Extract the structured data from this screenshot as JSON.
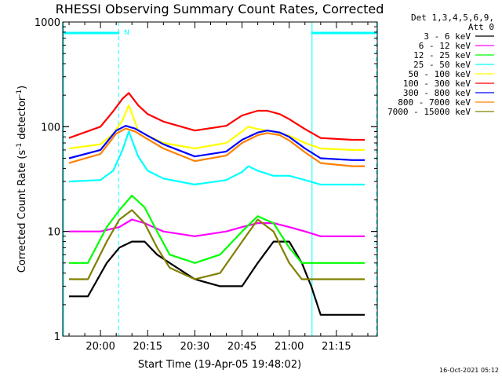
{
  "chart_data": {
    "type": "line",
    "title": "RHESSI Observing Summary Count Rates, Corrected",
    "xlabel": "Start Time (19-Apr-05 19:48:02)",
    "ylabel_main": "Corrected Count Rate (s",
    "ylabel_sup1": "-1",
    "ylabel_mid": " detector",
    "ylabel_sup2": "-1",
    "ylabel_end": ")",
    "yscale": "log",
    "ylim": [
      1,
      1000
    ],
    "xlim": [
      "19:48",
      "21:28"
    ],
    "y_ticks": [
      "1",
      "10",
      "100",
      "1000"
    ],
    "x_ticks": [
      "20:00",
      "20:15",
      "20:30",
      "20:45",
      "21:00",
      "21:15"
    ],
    "legend_title_1": "Det 1,3,4,5,6,9,",
    "legend_title_2": "Att 0",
    "legend_position": "right",
    "night_label": "N",
    "night_intervals": [
      [
        "19:48",
        "20:06"
      ],
      [
        "21:07",
        "21:28"
      ]
    ],
    "timestamp": "16-Oct-2021 05:12",
    "series": [
      {
        "name": "3 - 6 keV",
        "color": "#000000",
        "x": [
          "19:50",
          "19:56",
          "20:02",
          "20:06",
          "20:10",
          "20:14",
          "20:18",
          "20:22",
          "20:30",
          "20:38",
          "20:45",
          "20:50",
          "20:55",
          "21:00",
          "21:04",
          "21:07",
          "21:10",
          "21:15",
          "21:20",
          "21:24"
        ],
        "y": [
          2.4,
          2.4,
          5,
          7,
          8,
          8,
          6,
          5,
          3.5,
          3,
          3,
          5,
          8,
          8,
          5,
          3,
          1.6,
          1.6,
          1.6,
          1.6
        ]
      },
      {
        "name": "6 - 12 keV",
        "color": "#ff00ff",
        "x": [
          "19:50",
          "20:00",
          "20:06",
          "20:10",
          "20:14",
          "20:20",
          "20:30",
          "20:40",
          "20:45",
          "20:50",
          "20:55",
          "21:00",
          "21:05",
          "21:10",
          "21:20",
          "21:24"
        ],
        "y": [
          10,
          10,
          11,
          13,
          12,
          10,
          9,
          10,
          11,
          12,
          12,
          11,
          10,
          9,
          9,
          9
        ]
      },
      {
        "name": "12 - 25 keV",
        "color": "#00ff00",
        "x": [
          "19:50",
          "19:56",
          "20:02",
          "20:06",
          "20:10",
          "20:14",
          "20:18",
          "20:22",
          "20:30",
          "20:38",
          "20:45",
          "20:50",
          "20:55",
          "21:00",
          "21:04",
          "21:07",
          "21:15",
          "21:24"
        ],
        "y": [
          5,
          5,
          11,
          16,
          22,
          17,
          10,
          6,
          5,
          6,
          10,
          14,
          12,
          7,
          5,
          5,
          5,
          5
        ]
      },
      {
        "name": "25 - 50 keV",
        "color": "#00ffff",
        "x": [
          "19:50",
          "20:00",
          "20:04",
          "20:07",
          "20:09",
          "20:12",
          "20:15",
          "20:20",
          "20:30",
          "20:40",
          "20:45",
          "20:47",
          "20:50",
          "20:55",
          "21:00",
          "21:05",
          "21:10",
          "21:20",
          "21:24"
        ],
        "y": [
          30,
          31,
          38,
          60,
          90,
          52,
          38,
          32,
          28,
          31,
          37,
          42,
          38,
          34,
          34,
          31,
          28,
          28,
          28
        ]
      },
      {
        "name": "50 - 100 keV",
        "color": "#ffff00",
        "x": [
          "19:50",
          "20:00",
          "20:04",
          "20:07",
          "20:09",
          "20:12",
          "20:15",
          "20:20",
          "20:30",
          "20:40",
          "20:45",
          "20:47",
          "20:50",
          "20:55",
          "21:00",
          "21:05",
          "21:10",
          "21:20",
          "21:24"
        ],
        "y": [
          62,
          68,
          85,
          115,
          160,
          92,
          82,
          70,
          62,
          70,
          90,
          100,
          95,
          90,
          82,
          70,
          62,
          60,
          60
        ]
      },
      {
        "name": "100 - 300 keV",
        "color": "#ff0000",
        "x": [
          "19:50",
          "20:00",
          "20:04",
          "20:07",
          "20:09",
          "20:12",
          "20:15",
          "20:20",
          "20:30",
          "20:40",
          "20:45",
          "20:50",
          "20:53",
          "20:57",
          "21:00",
          "21:05",
          "21:10",
          "21:20",
          "21:24"
        ],
        "y": [
          78,
          100,
          140,
          185,
          210,
          160,
          132,
          112,
          92,
          102,
          128,
          142,
          142,
          132,
          118,
          95,
          78,
          75,
          75
        ]
      },
      {
        "name": "300 - 800 keV",
        "color": "#0000ff",
        "x": [
          "19:50",
          "20:00",
          "20:05",
          "20:08",
          "20:11",
          "20:15",
          "20:20",
          "20:30",
          "20:40",
          "20:45",
          "20:50",
          "20:53",
          "20:57",
          "21:00",
          "21:05",
          "21:10",
          "21:20",
          "21:24"
        ],
        "y": [
          50,
          60,
          92,
          102,
          96,
          82,
          68,
          52,
          58,
          75,
          88,
          92,
          88,
          80,
          62,
          50,
          48,
          48
        ]
      },
      {
        "name": "800 - 7000 keV",
        "color": "#ff8000",
        "x": [
          "19:50",
          "20:00",
          "20:05",
          "20:08",
          "20:11",
          "20:15",
          "20:20",
          "20:30",
          "20:40",
          "20:45",
          "20:50",
          "20:53",
          "20:57",
          "21:00",
          "21:05",
          "21:10",
          "21:20",
          "21:24"
        ],
        "y": [
          45,
          55,
          86,
          96,
          90,
          76,
          62,
          47,
          53,
          70,
          83,
          87,
          83,
          74,
          57,
          45,
          42,
          42
        ]
      },
      {
        "name": "7000 - 15000 keV",
        "color": "#808000",
        "x": [
          "19:50",
          "19:56",
          "20:02",
          "20:06",
          "20:10",
          "20:14",
          "20:18",
          "20:22",
          "20:30",
          "20:38",
          "20:45",
          "20:50",
          "20:55",
          "21:00",
          "21:04",
          "21:07",
          "21:15",
          "21:24"
        ],
        "y": [
          3.5,
          3.5,
          8,
          13,
          16,
          12,
          7,
          4.5,
          3.5,
          4,
          8,
          13,
          10,
          5,
          3.5,
          3.5,
          3.5,
          3.5
        ]
      }
    ]
  }
}
